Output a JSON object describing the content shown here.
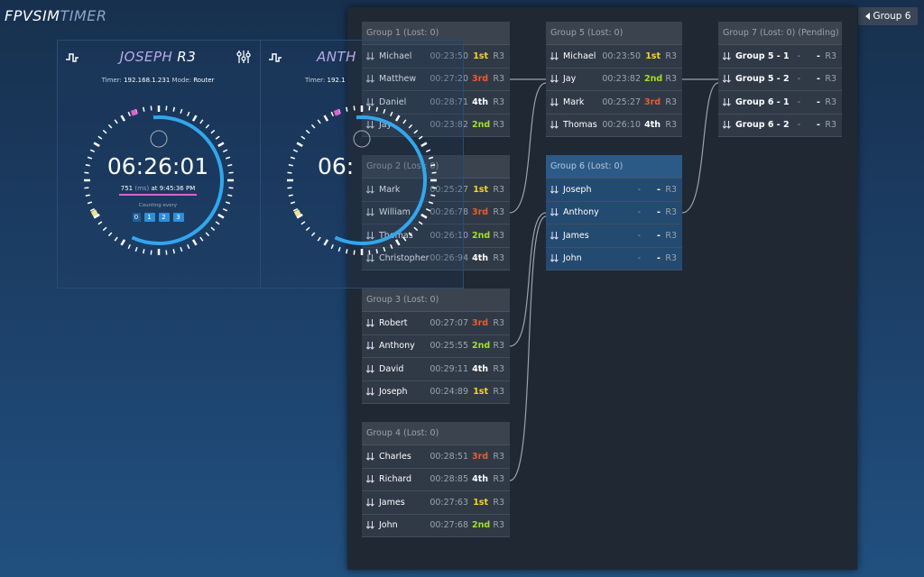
{
  "header": {
    "brand": "FPVSIM",
    "brand_suffix": "TIMER",
    "button": "Group 6"
  },
  "timers": [
    {
      "name": "JOSEPH",
      "round": "R3",
      "timer_label": "Timer:",
      "ip": "192.168.1.231",
      "mode_label": "Mode:",
      "mode": "Router",
      "clock": "06:26:01",
      "last": "751",
      "last_unit": "(ms)",
      "last_at": "at 9:45:36 PM",
      "counting": "Counting every",
      "counts": [
        "0",
        "1",
        "2",
        "3"
      ]
    },
    {
      "name": "ANTH",
      "timer_label": "Timer:",
      "ip": "192.1",
      "clock": "06:"
    }
  ],
  "groups": [
    {
      "title": "Group 1 (Lost: 0)",
      "rows": [
        {
          "name": "Michael",
          "time": "00:23:50",
          "place": "1st",
          "place_color": "#f7d616",
          "round": "R3"
        },
        {
          "name": "Matthew",
          "time": "00:27:20",
          "place": "3rd",
          "place_color": "#f2582a",
          "round": "R3"
        },
        {
          "name": "Daniel",
          "time": "00:28:71",
          "place": "4th",
          "place_color": "#ffffff",
          "round": "R3"
        },
        {
          "name": "Jay",
          "time": "00:23:82",
          "place": "2nd",
          "place_color": "#a3e21c",
          "round": "R3"
        }
      ]
    },
    {
      "title": "Group 2 (Lost: 0)",
      "rows": [
        {
          "name": "Mark",
          "time": "00:25:27",
          "place": "1st",
          "place_color": "#f7d616",
          "round": "R3"
        },
        {
          "name": "William",
          "time": "00:26:78",
          "place": "3rd",
          "place_color": "#f2582a",
          "round": "R3"
        },
        {
          "name": "Thomas",
          "time": "00:26:10",
          "place": "2nd",
          "place_color": "#a3e21c",
          "round": "R3"
        },
        {
          "name": "Christopher",
          "time": "00:26:94",
          "place": "4th",
          "place_color": "#ffffff",
          "round": "R3"
        }
      ]
    },
    {
      "title": "Group 3 (Lost: 0)",
      "rows": [
        {
          "name": "Robert",
          "time": "00:27:07",
          "place": "3rd",
          "place_color": "#f2582a",
          "round": "R3"
        },
        {
          "name": "Anthony",
          "time": "00:25:55",
          "place": "2nd",
          "place_color": "#a3e21c",
          "round": "R3"
        },
        {
          "name": "David",
          "time": "00:29:11",
          "place": "4th",
          "place_color": "#ffffff",
          "round": "R3"
        },
        {
          "name": "Joseph",
          "time": "00:24:89",
          "place": "1st",
          "place_color": "#f7d616",
          "round": "R3"
        }
      ]
    },
    {
      "title": "Group 4 (Lost: 0)",
      "rows": [
        {
          "name": "Charles",
          "time": "00:28:51",
          "place": "3rd",
          "place_color": "#f2582a",
          "round": "R3"
        },
        {
          "name": "Richard",
          "time": "00:28:85",
          "place": "4th",
          "place_color": "#ffffff",
          "round": "R3"
        },
        {
          "name": "James",
          "time": "00:27:63",
          "place": "1st",
          "place_color": "#f7d616",
          "round": "R3"
        },
        {
          "name": "John",
          "time": "00:27:68",
          "place": "2nd",
          "place_color": "#a3e21c",
          "round": "R3"
        }
      ]
    },
    {
      "title": "Group 5 (Lost: 0)",
      "rows": [
        {
          "name": "Michael",
          "time": "00:23:50",
          "place": "1st",
          "place_color": "#f7d616",
          "round": "R3"
        },
        {
          "name": "Jay",
          "time": "00:23:82",
          "place": "2nd",
          "place_color": "#a3e21c",
          "round": "R3"
        },
        {
          "name": "Mark",
          "time": "00:25:27",
          "place": "3rd",
          "place_color": "#f2582a",
          "round": "R3"
        },
        {
          "name": "Thomas",
          "time": "00:26:10",
          "place": "4th",
          "place_color": "#ffffff",
          "round": "R3"
        }
      ]
    },
    {
      "title": "Group 6 (Lost: 0)",
      "active": true,
      "rows": [
        {
          "name": "Joseph",
          "time": "-",
          "place": "-",
          "place_color": "#ffffff",
          "round": "R3"
        },
        {
          "name": "Anthony",
          "time": "-",
          "place": "-",
          "place_color": "#ffffff",
          "round": "R3"
        },
        {
          "name": "James",
          "time": "-",
          "place": "-",
          "place_color": "#ffffff",
          "round": "R3"
        },
        {
          "name": "John",
          "time": "-",
          "place": "-",
          "place_color": "#ffffff",
          "round": "R3"
        }
      ]
    },
    {
      "title": "Group 7 (Lost: 0) (Pending)",
      "rows": [
        {
          "name": "Group 5 - 1",
          "time": "-",
          "place": "-",
          "place_color": "#ffffff",
          "round": "R3"
        },
        {
          "name": "Group 5 - 2",
          "time": "-",
          "place": "-",
          "place_color": "#ffffff",
          "round": "R3"
        },
        {
          "name": "Group 6 - 1",
          "time": "-",
          "place": "-",
          "place_color": "#ffffff",
          "round": "R3"
        },
        {
          "name": "Group 6 - 2",
          "time": "-",
          "place": "-",
          "place_color": "#ffffff",
          "round": "R3"
        }
      ]
    }
  ]
}
